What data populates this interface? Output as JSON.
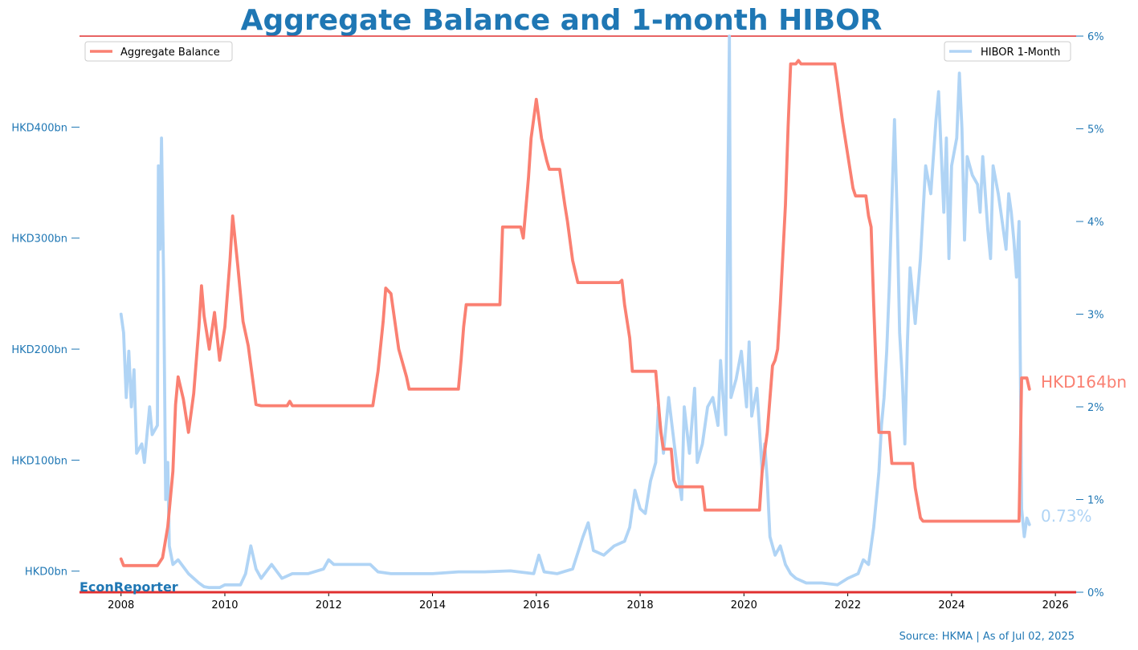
{
  "header": {
    "title": "Aggregate Balance and 1-month HIBOR"
  },
  "brand": "EconReporter",
  "source": "Source: HKMA | As of Jul 02, 2025",
  "colors": {
    "title": "#1f77b4",
    "axis_text": "#1f77b4",
    "aggregate_balance": "#fa8072",
    "hibor": "#b0d4f5",
    "rule": "#e03030"
  },
  "chart_data": {
    "type": "line",
    "title": "Aggregate Balance and 1-month HIBOR",
    "grid": false,
    "x_axis": {
      "ticks": [
        2008,
        2010,
        2012,
        2014,
        2016,
        2018,
        2020,
        2022,
        2024,
        2026
      ],
      "range": [
        2007.2,
        2026.4
      ]
    },
    "y_left": {
      "range": [
        -19,
        482
      ],
      "ticks": [
        0,
        100,
        200,
        300,
        400
      ],
      "tick_labels": [
        "HKD0bn",
        "HKD100bn",
        "HKD200bn",
        "HKD300bn",
        "HKD400bn"
      ]
    },
    "y_right": {
      "range": [
        0,
        6
      ],
      "ticks": [
        0,
        1,
        2,
        3,
        4,
        5,
        6
      ],
      "tick_labels": [
        "0%",
        "1%",
        "2%",
        "3%",
        "4%",
        "5%",
        "6%"
      ]
    },
    "legend_left": {
      "placement": "top-left"
    },
    "legend_right": {
      "placement": "top-right"
    },
    "series": [
      {
        "name": "Aggregate Balance",
        "axis": "left",
        "end_label": "HKD164bn",
        "points": [
          [
            2008.0,
            11
          ],
          [
            2008.05,
            5
          ],
          [
            2008.3,
            5
          ],
          [
            2008.7,
            5
          ],
          [
            2008.8,
            12
          ],
          [
            2008.9,
            40
          ],
          [
            2009.0,
            90
          ],
          [
            2009.05,
            150
          ],
          [
            2009.1,
            175
          ],
          [
            2009.2,
            155
          ],
          [
            2009.3,
            125
          ],
          [
            2009.4,
            160
          ],
          [
            2009.5,
            220
          ],
          [
            2009.55,
            257
          ],
          [
            2009.6,
            230
          ],
          [
            2009.7,
            200
          ],
          [
            2009.8,
            233
          ],
          [
            2009.9,
            190
          ],
          [
            2010.0,
            220
          ],
          [
            2010.1,
            280
          ],
          [
            2010.15,
            320
          ],
          [
            2010.25,
            275
          ],
          [
            2010.35,
            225
          ],
          [
            2010.45,
            203
          ],
          [
            2010.55,
            168
          ],
          [
            2010.6,
            150
          ],
          [
            2010.7,
            149
          ],
          [
            2011.2,
            149
          ],
          [
            2011.25,
            153
          ],
          [
            2011.3,
            149
          ],
          [
            2012.85,
            149
          ],
          [
            2012.95,
            180
          ],
          [
            2013.05,
            225
          ],
          [
            2013.1,
            255
          ],
          [
            2013.2,
            250
          ],
          [
            2013.35,
            200
          ],
          [
            2013.5,
            175
          ],
          [
            2013.55,
            164
          ],
          [
            2014.5,
            164
          ],
          [
            2014.55,
            190
          ],
          [
            2014.6,
            220
          ],
          [
            2014.65,
            240
          ],
          [
            2015.3,
            240
          ],
          [
            2015.35,
            310
          ],
          [
            2015.7,
            310
          ],
          [
            2015.75,
            300
          ],
          [
            2015.85,
            355
          ],
          [
            2015.9,
            390
          ],
          [
            2016.0,
            425
          ],
          [
            2016.1,
            390
          ],
          [
            2016.2,
            370
          ],
          [
            2016.25,
            362
          ],
          [
            2016.45,
            362
          ],
          [
            2016.55,
            330
          ],
          [
            2016.6,
            315
          ],
          [
            2016.7,
            280
          ],
          [
            2016.8,
            260
          ],
          [
            2017.5,
            260
          ],
          [
            2017.6,
            260
          ],
          [
            2017.65,
            262
          ],
          [
            2017.7,
            240
          ],
          [
            2017.8,
            210
          ],
          [
            2017.85,
            180
          ],
          [
            2018.3,
            180
          ],
          [
            2018.4,
            125
          ],
          [
            2018.45,
            110
          ],
          [
            2018.6,
            110
          ],
          [
            2018.65,
            82
          ],
          [
            2018.7,
            76
          ],
          [
            2019.2,
            76
          ],
          [
            2019.25,
            55
          ],
          [
            2020.3,
            55
          ],
          [
            2020.35,
            90
          ],
          [
            2020.45,
            125
          ],
          [
            2020.55,
            185
          ],
          [
            2020.6,
            190
          ],
          [
            2020.65,
            200
          ],
          [
            2020.7,
            240
          ],
          [
            2020.8,
            330
          ],
          [
            2020.85,
            400
          ],
          [
            2020.9,
            457
          ],
          [
            2021.0,
            457
          ],
          [
            2021.05,
            460
          ],
          [
            2021.1,
            457
          ],
          [
            2021.75,
            457
          ],
          [
            2021.8,
            440
          ],
          [
            2021.9,
            405
          ],
          [
            2022.0,
            375
          ],
          [
            2022.1,
            345
          ],
          [
            2022.15,
            338
          ],
          [
            2022.35,
            338
          ],
          [
            2022.4,
            320
          ],
          [
            2022.45,
            310
          ],
          [
            2022.5,
            240
          ],
          [
            2022.55,
            175
          ],
          [
            2022.6,
            125
          ],
          [
            2022.8,
            125
          ],
          [
            2022.85,
            97
          ],
          [
            2023.25,
            97
          ],
          [
            2023.3,
            75
          ],
          [
            2023.4,
            48
          ],
          [
            2023.45,
            45
          ],
          [
            2025.3,
            45
          ],
          [
            2025.35,
            174
          ],
          [
            2025.45,
            174
          ],
          [
            2025.5,
            164
          ]
        ]
      },
      {
        "name": "HIBOR 1-Month",
        "axis": "right",
        "end_label": "0.73%",
        "points": [
          [
            2008.0,
            3.0
          ],
          [
            2008.05,
            2.8
          ],
          [
            2008.1,
            2.1
          ],
          [
            2008.15,
            2.6
          ],
          [
            2008.2,
            2.0
          ],
          [
            2008.25,
            2.4
          ],
          [
            2008.3,
            1.5
          ],
          [
            2008.4,
            1.6
          ],
          [
            2008.45,
            1.4
          ],
          [
            2008.55,
            2.0
          ],
          [
            2008.6,
            1.7
          ],
          [
            2008.7,
            1.8
          ],
          [
            2008.72,
            4.6
          ],
          [
            2008.75,
            3.7
          ],
          [
            2008.78,
            4.9
          ],
          [
            2008.82,
            3.4
          ],
          [
            2008.86,
            1.0
          ],
          [
            2008.9,
            1.4
          ],
          [
            2008.93,
            0.5
          ],
          [
            2009.0,
            0.3
          ],
          [
            2009.1,
            0.35
          ],
          [
            2009.3,
            0.2
          ],
          [
            2009.5,
            0.1
          ],
          [
            2009.6,
            0.06
          ],
          [
            2009.7,
            0.05
          ],
          [
            2009.9,
            0.05
          ],
          [
            2010.0,
            0.08
          ],
          [
            2010.3,
            0.08
          ],
          [
            2010.4,
            0.2
          ],
          [
            2010.5,
            0.5
          ],
          [
            2010.6,
            0.25
          ],
          [
            2010.7,
            0.15
          ],
          [
            2010.9,
            0.3
          ],
          [
            2011.1,
            0.15
          ],
          [
            2011.3,
            0.2
          ],
          [
            2011.6,
            0.2
          ],
          [
            2011.9,
            0.25
          ],
          [
            2012.0,
            0.35
          ],
          [
            2012.1,
            0.3
          ],
          [
            2012.5,
            0.3
          ],
          [
            2012.8,
            0.3
          ],
          [
            2012.95,
            0.22
          ],
          [
            2013.2,
            0.2
          ],
          [
            2014.0,
            0.2
          ],
          [
            2014.5,
            0.22
          ],
          [
            2015.0,
            0.22
          ],
          [
            2015.5,
            0.23
          ],
          [
            2015.95,
            0.2
          ],
          [
            2016.05,
            0.4
          ],
          [
            2016.15,
            0.22
          ],
          [
            2016.4,
            0.2
          ],
          [
            2016.7,
            0.25
          ],
          [
            2016.9,
            0.6
          ],
          [
            2017.0,
            0.75
          ],
          [
            2017.1,
            0.45
          ],
          [
            2017.3,
            0.4
          ],
          [
            2017.5,
            0.5
          ],
          [
            2017.7,
            0.55
          ],
          [
            2017.8,
            0.7
          ],
          [
            2017.9,
            1.1
          ],
          [
            2018.0,
            0.9
          ],
          [
            2018.1,
            0.85
          ],
          [
            2018.2,
            1.2
          ],
          [
            2018.3,
            1.4
          ],
          [
            2018.35,
            2.0
          ],
          [
            2018.45,
            1.5
          ],
          [
            2018.55,
            2.1
          ],
          [
            2018.7,
            1.4
          ],
          [
            2018.8,
            1.0
          ],
          [
            2018.85,
            2.0
          ],
          [
            2018.95,
            1.5
          ],
          [
            2019.05,
            2.2
          ],
          [
            2019.1,
            1.4
          ],
          [
            2019.2,
            1.6
          ],
          [
            2019.3,
            2.0
          ],
          [
            2019.4,
            2.1
          ],
          [
            2019.5,
            1.8
          ],
          [
            2019.55,
            2.5
          ],
          [
            2019.65,
            1.7
          ],
          [
            2019.72,
            6.0
          ],
          [
            2019.75,
            2.1
          ],
          [
            2019.85,
            2.3
          ],
          [
            2019.95,
            2.6
          ],
          [
            2020.05,
            2.0
          ],
          [
            2020.1,
            2.7
          ],
          [
            2020.15,
            1.9
          ],
          [
            2020.25,
            2.2
          ],
          [
            2020.35,
            1.3
          ],
          [
            2020.4,
            1.6
          ],
          [
            2020.45,
            1.2
          ],
          [
            2020.5,
            0.6
          ],
          [
            2020.6,
            0.4
          ],
          [
            2020.7,
            0.5
          ],
          [
            2020.8,
            0.3
          ],
          [
            2020.9,
            0.2
          ],
          [
            2021.0,
            0.15
          ],
          [
            2021.2,
            0.1
          ],
          [
            2021.5,
            0.1
          ],
          [
            2021.8,
            0.08
          ],
          [
            2022.0,
            0.15
          ],
          [
            2022.2,
            0.2
          ],
          [
            2022.3,
            0.35
          ],
          [
            2022.4,
            0.3
          ],
          [
            2022.5,
            0.7
          ],
          [
            2022.55,
            1.0
          ],
          [
            2022.6,
            1.3
          ],
          [
            2022.65,
            1.8
          ],
          [
            2022.7,
            2.1
          ],
          [
            2022.75,
            2.6
          ],
          [
            2022.8,
            3.3
          ],
          [
            2022.85,
            4.2
          ],
          [
            2022.9,
            5.1
          ],
          [
            2022.95,
            4.1
          ],
          [
            2023.0,
            2.8
          ],
          [
            2023.05,
            2.3
          ],
          [
            2023.1,
            1.6
          ],
          [
            2023.15,
            2.7
          ],
          [
            2023.2,
            3.5
          ],
          [
            2023.3,
            2.9
          ],
          [
            2023.4,
            3.6
          ],
          [
            2023.5,
            4.6
          ],
          [
            2023.6,
            4.3
          ],
          [
            2023.7,
            5.1
          ],
          [
            2023.75,
            5.4
          ],
          [
            2023.85,
            4.1
          ],
          [
            2023.9,
            4.9
          ],
          [
            2023.95,
            3.6
          ],
          [
            2024.0,
            4.6
          ],
          [
            2024.1,
            4.9
          ],
          [
            2024.15,
            5.6
          ],
          [
            2024.2,
            5.0
          ],
          [
            2024.25,
            3.8
          ],
          [
            2024.3,
            4.7
          ],
          [
            2024.4,
            4.5
          ],
          [
            2024.5,
            4.4
          ],
          [
            2024.55,
            4.1
          ],
          [
            2024.6,
            4.7
          ],
          [
            2024.7,
            3.9
          ],
          [
            2024.75,
            3.6
          ],
          [
            2024.8,
            4.6
          ],
          [
            2024.9,
            4.3
          ],
          [
            2024.95,
            4.1
          ],
          [
            2025.0,
            3.9
          ],
          [
            2025.05,
            3.7
          ],
          [
            2025.1,
            4.3
          ],
          [
            2025.15,
            4.1
          ],
          [
            2025.2,
            3.8
          ],
          [
            2025.25,
            3.4
          ],
          [
            2025.3,
            4.0
          ],
          [
            2025.35,
            0.9
          ],
          [
            2025.4,
            0.6
          ],
          [
            2025.45,
            0.8
          ],
          [
            2025.5,
            0.73
          ]
        ]
      }
    ]
  }
}
